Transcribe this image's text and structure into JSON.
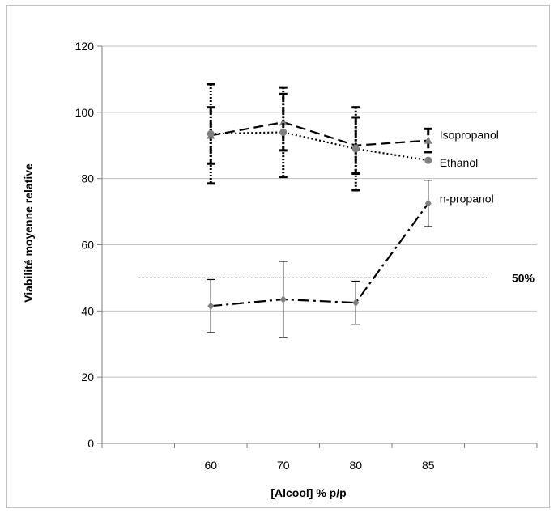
{
  "chart_data": {
    "type": "line",
    "title": "",
    "xlabel": "[Alcool] % p/p",
    "ylabel": "Viabilité moyenne relative",
    "categories": [
      "60",
      "70",
      "80",
      "85"
    ],
    "ylim": [
      0,
      120
    ],
    "yticks": [
      "0",
      "20",
      "40",
      "60",
      "80",
      "100",
      "120"
    ],
    "grid": true,
    "series": [
      {
        "name": "Isopropanol",
        "values": [
          93,
          97,
          90,
          91.5
        ],
        "errors": [
          8.5,
          8.5,
          8.5,
          3.5
        ],
        "color": "#808080",
        "marker": "triangle",
        "line_style": "dash",
        "error_style": "dash-dot"
      },
      {
        "name": "Ethanol",
        "values": [
          93.5,
          94,
          89,
          85.5
        ],
        "errors": [
          15,
          13.5,
          12.5,
          0
        ],
        "color": "#808080",
        "marker": "circle",
        "line_style": "dot",
        "error_style": "dot"
      },
      {
        "name": "n-propanol",
        "values": [
          41.5,
          43.5,
          42.5,
          72.5
        ],
        "errors": [
          8,
          11.5,
          6.5,
          7
        ],
        "color": "#808080",
        "marker": "diamond",
        "line_style": "dash-dot",
        "error_style": "solid"
      }
    ],
    "reference_line": {
      "value": 50,
      "label": "50%"
    }
  }
}
